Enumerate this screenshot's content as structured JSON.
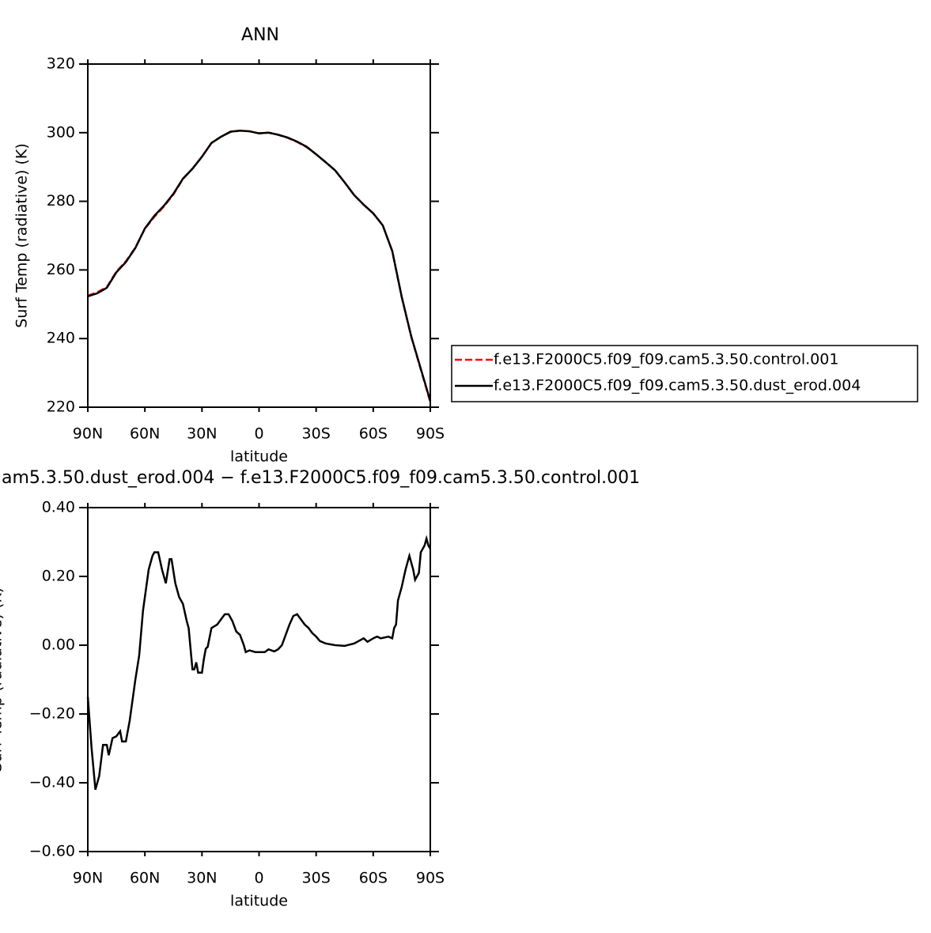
{
  "chart_data": [
    {
      "type": "line",
      "title": "ANN",
      "x_label": "latitude",
      "y_label": "Surf Temp (radiative) (K)",
      "x": [
        90,
        85,
        80,
        75,
        70,
        65,
        60,
        55,
        50,
        45,
        40,
        35,
        30,
        25,
        20,
        15,
        10,
        5,
        0,
        -5,
        -10,
        -15,
        -20,
        -25,
        -30,
        -35,
        -40,
        -45,
        -50,
        -55,
        -60,
        -65,
        -70,
        -75,
        -80,
        -85,
        -90
      ],
      "series": [
        {
          "name": "f.e13.F2000C5.f09_f09.cam5.3.50.control.001",
          "color": "#ff0000",
          "dash": "dashed",
          "values": [
            252.5,
            253.5,
            255,
            259.5,
            262.5,
            266.5,
            272,
            275.5,
            278.5,
            282,
            286.5,
            289.5,
            293,
            297,
            298.8,
            300.2,
            300.6,
            300.4,
            299.8,
            300,
            299.4,
            298.5,
            297.3,
            295.8,
            293.7,
            291.4,
            289,
            285.5,
            281.8,
            279,
            276.5,
            273,
            265.5,
            252,
            240.5,
            231,
            221.5
          ]
        },
        {
          "name": "f.e13.F2000C5.f09_f09.cam5.3.50.dust_erod.004",
          "color": "#000000",
          "dash": "solid",
          "values": [
            252.3,
            253.2,
            254.8,
            259.3,
            262.3,
            266.4,
            272.1,
            275.8,
            278.7,
            282.2,
            286.6,
            289.5,
            293,
            297,
            298.8,
            300.3,
            300.6,
            300.4,
            299.8,
            300,
            299.4,
            298.6,
            297.4,
            295.9,
            293.7,
            291.4,
            289,
            285.5,
            281.8,
            279,
            276.5,
            273,
            265.5,
            252.1,
            240.6,
            231.2,
            221.8
          ]
        }
      ],
      "xlim": [
        90,
        -90
      ],
      "xticks": [
        {
          "value": 90,
          "label": "90N"
        },
        {
          "value": 60,
          "label": "60N"
        },
        {
          "value": 30,
          "label": "30N"
        },
        0,
        {
          "value": -30,
          "label": "30S"
        },
        {
          "value": -60,
          "label": "60S"
        },
        {
          "value": -90,
          "label": "90S"
        }
      ],
      "ylim": [
        220,
        320
      ],
      "yticks": [
        220,
        240,
        260,
        280,
        300,
        320
      ],
      "legend": "right"
    },
    {
      "type": "line",
      "title": "am5.3.50.dust_erod.004 − f.e13.F2000C5.f09_f09.cam5.3.50.control.001",
      "x_label": "latitude",
      "y_label": "Surf Temp (radiative) (K)",
      "x": [
        90,
        88,
        86,
        84,
        82,
        80,
        79,
        77,
        75,
        73,
        72,
        70,
        68,
        65,
        63,
        61,
        60,
        58,
        56,
        55,
        53,
        51,
        49,
        47,
        46,
        44,
        42,
        40,
        38,
        37,
        35,
        34,
        33,
        32,
        30,
        29,
        28,
        27,
        25,
        22,
        20,
        18,
        16,
        14,
        12,
        10,
        8,
        7,
        5,
        2,
        0,
        -3,
        -5,
        -8,
        -10,
        -12,
        -14,
        -16,
        -18,
        -20,
        -22,
        -24,
        -26,
        -28,
        -30,
        -32,
        -35,
        -40,
        -45,
        -50,
        -55,
        -57,
        -60,
        -62,
        -64,
        -68,
        -70,
        -71,
        -72,
        -73,
        -75,
        -77,
        -78,
        -79,
        -81,
        -82,
        -84,
        -85,
        -87,
        -88,
        -89,
        -90
      ],
      "series": [
        {
          "color": "#000000",
          "dash": "solid",
          "values": [
            -0.15,
            -0.3,
            -0.42,
            -0.38,
            -0.29,
            -0.29,
            -0.32,
            -0.27,
            -0.265,
            -0.25,
            -0.28,
            -0.28,
            -0.22,
            -0.1,
            -0.03,
            0.1,
            0.14,
            0.22,
            0.26,
            0.27,
            0.27,
            0.22,
            0.18,
            0.25,
            0.25,
            0.18,
            0.14,
            0.12,
            0.07,
            0.05,
            -0.07,
            -0.07,
            -0.05,
            -0.08,
            -0.08,
            -0.04,
            -0.01,
            -0.005,
            0.05,
            0.06,
            0.075,
            0.09,
            0.09,
            0.07,
            0.04,
            0.03,
            0.0,
            -0.02,
            -0.015,
            -0.02,
            -0.02,
            -0.02,
            -0.012,
            -0.018,
            -0.012,
            0.0,
            0.03,
            0.06,
            0.085,
            0.09,
            0.075,
            0.06,
            0.05,
            0.035,
            0.025,
            0.012,
            0.005,
            0.0,
            -0.002,
            0.005,
            0.02,
            0.01,
            0.02,
            0.025,
            0.02,
            0.025,
            0.02,
            0.05,
            0.06,
            0.13,
            0.17,
            0.22,
            0.24,
            0.26,
            0.22,
            0.19,
            0.21,
            0.27,
            0.29,
            0.31,
            0.29,
            0.28
          ]
        }
      ],
      "xlim": [
        90,
        -90
      ],
      "xticks": [
        {
          "value": 90,
          "label": "90N"
        },
        {
          "value": 60,
          "label": "60N"
        },
        {
          "value": 30,
          "label": "30N"
        },
        0,
        {
          "value": -30,
          "label": "30S"
        },
        {
          "value": -60,
          "label": "60S"
        },
        {
          "value": -90,
          "label": "90S"
        }
      ],
      "ylim": [
        -0.6,
        0.4
      ],
      "yticks": [
        {
          "value": -0.6,
          "label": "−0.60"
        },
        {
          "value": -0.4,
          "label": "−0.40"
        },
        {
          "value": -0.2,
          "label": "−0.20"
        },
        {
          "value": 0,
          "label": "0.00"
        },
        {
          "value": 0.2,
          "label": "0.20"
        },
        {
          "value": 0.4,
          "label": "0.40"
        }
      ]
    }
  ]
}
